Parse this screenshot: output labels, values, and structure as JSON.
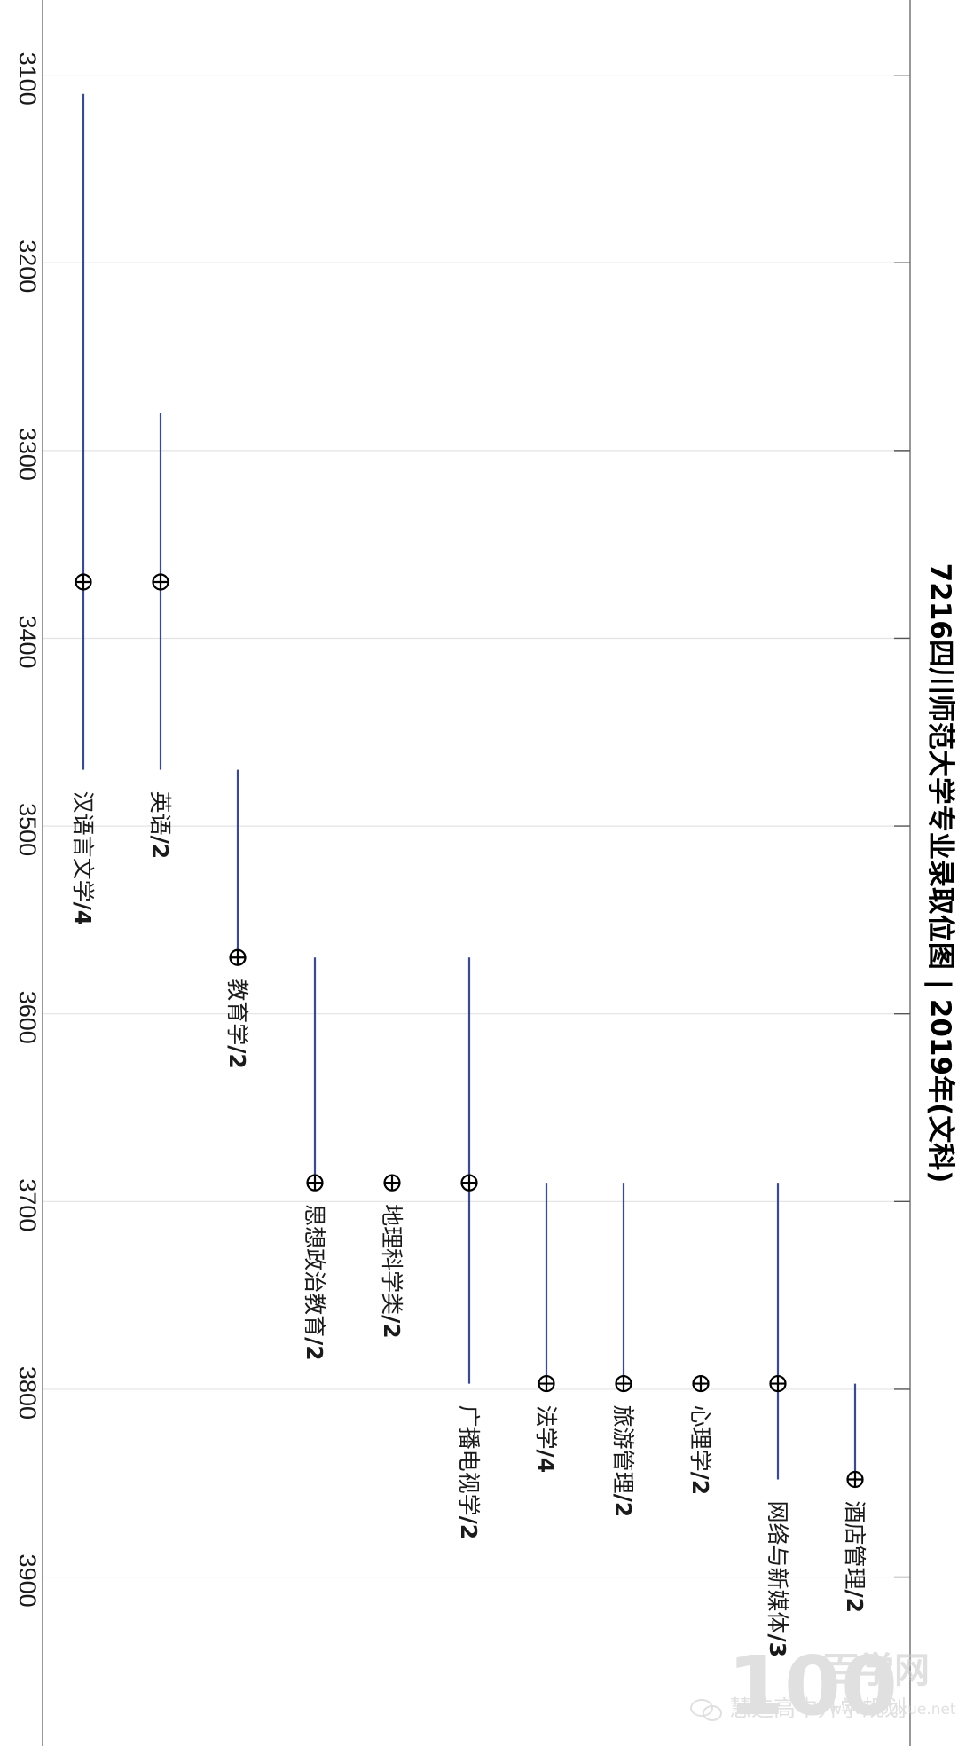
{
  "chart_data": {
    "type": "range",
    "title": "7216四川师范大学专业录取位图 | 2019年(文科)",
    "axis": {
      "range": [
        3060,
        3990
      ],
      "ticks": [
        3100,
        3200,
        3300,
        3400,
        3500,
        3600,
        3700,
        3800,
        3900
      ]
    },
    "categories": [
      {
        "name": "汉语言文学",
        "suffix": "/4",
        "low": 3110,
        "high": 3470,
        "point": 3370
      },
      {
        "name": "英语",
        "suffix": "/2",
        "low": 3280,
        "high": 3470,
        "point": 3370
      },
      {
        "name": "教育学",
        "suffix": "/2",
        "low": 3470,
        "high": 3570,
        "point": 3570
      },
      {
        "name": "思想政治教育",
        "suffix": "/2",
        "low": 3570,
        "high": 3690,
        "point": 3690
      },
      {
        "name": "地理科学类",
        "suffix": "/2",
        "low": null,
        "high": null,
        "point": 3690
      },
      {
        "name": "广播电视学",
        "suffix": "/2",
        "low": 3570,
        "high": 3797,
        "point": 3690
      },
      {
        "name": "法学",
        "suffix": "/4",
        "low": 3690,
        "high": 3797,
        "point": 3797
      },
      {
        "name": "旅游管理",
        "suffix": "/2",
        "low": 3690,
        "high": 3797,
        "point": 3797
      },
      {
        "name": "心理学",
        "suffix": "/2",
        "low": null,
        "high": null,
        "point": 3797
      },
      {
        "name": "网络与新媒体",
        "suffix": "/3",
        "low": 3690,
        "high": 3848,
        "point": 3797
      },
      {
        "name": "酒店管理",
        "suffix": "/2",
        "low": 3797,
        "high": 3848,
        "point": 3848
      }
    ],
    "grid": true,
    "colors": {
      "range_line": "#3a4a8c",
      "grid": "#e3e3e3",
      "axis": "#555555",
      "marker": "#000000"
    }
  },
  "watermark": {
    "brand": "百学网",
    "account": "慧选高中升学规划",
    "url": "www.100xue.net",
    "logo": "100"
  }
}
